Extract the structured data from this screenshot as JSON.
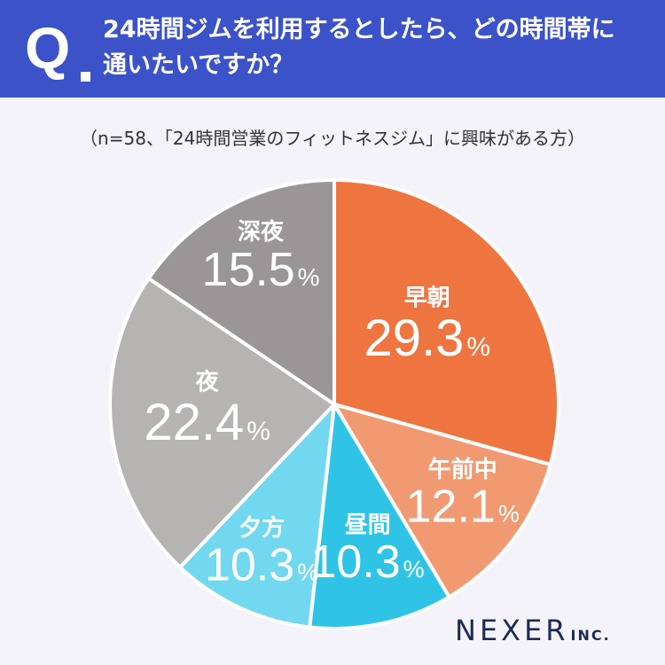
{
  "header": {
    "q_mark": "Q",
    "question_line1": "24時間ジムを利用するとしたら、どの時間帯に",
    "question_line2": "通いたいですか？"
  },
  "subtitle": "（n=58、「24時間営業のフィットネスジム」に興味がある方）",
  "chart_data": {
    "type": "pie",
    "unit": "%",
    "slices": [
      {
        "label": "早朝",
        "value": 29.3,
        "color": "#ee7540"
      },
      {
        "label": "午前中",
        "value": 12.1,
        "color": "#f19a72"
      },
      {
        "label": "昼間",
        "value": 10.3,
        "color": "#2fc4e6"
      },
      {
        "label": "夕方",
        "value": 10.3,
        "color": "#72d8f0"
      },
      {
        "label": "夜",
        "value": 22.4,
        "color": "#b6b3b3"
      },
      {
        "label": "深夜",
        "value": 15.5,
        "color": "#9a9697"
      }
    ]
  },
  "logo": {
    "main": "NEXER",
    "suffix": "INC."
  }
}
